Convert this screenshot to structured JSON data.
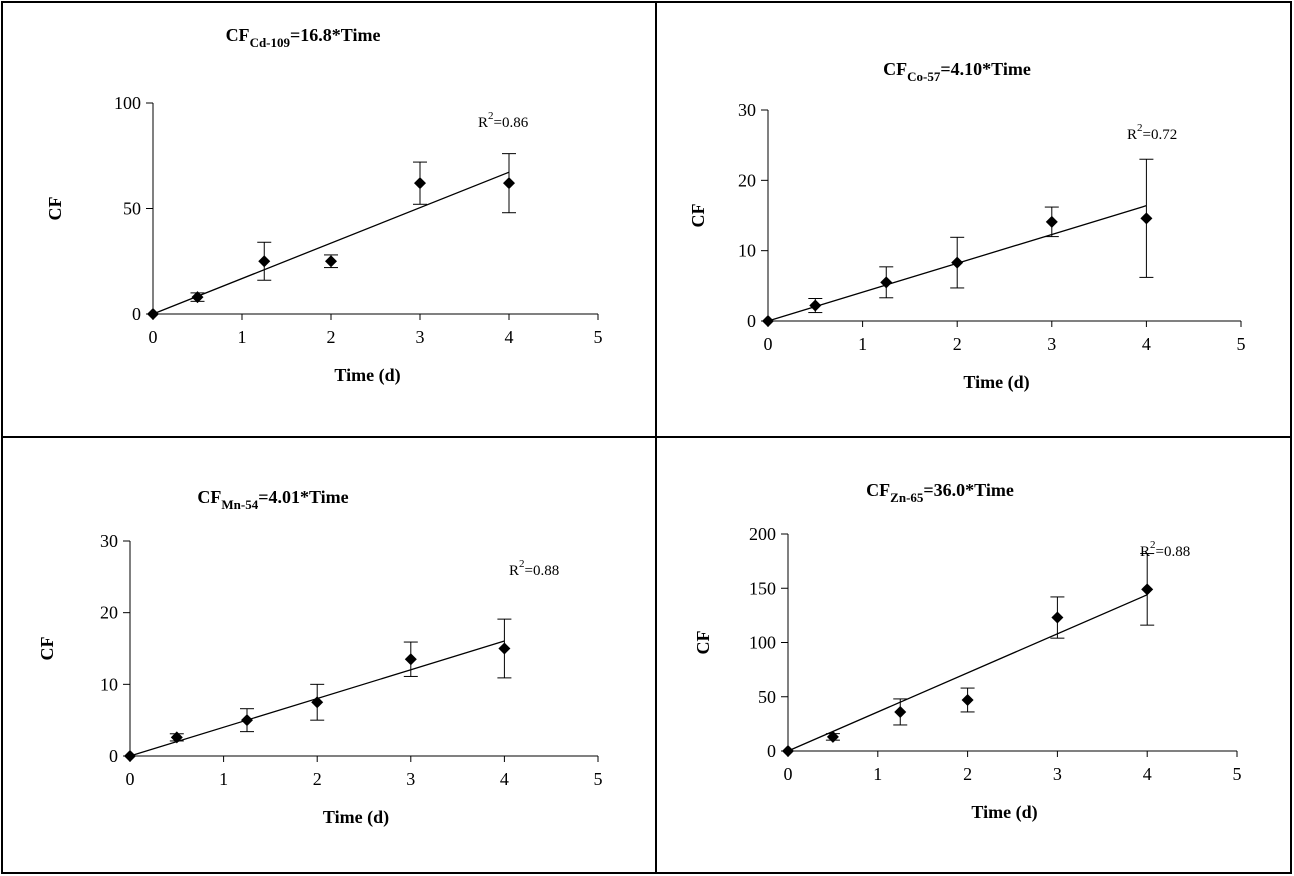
{
  "chart_data": [
    {
      "type": "scatter",
      "title": {
        "prefix": "CF",
        "sub": "Cd-109",
        "suffix": "=16.8*Time"
      },
      "xlabel": "Time (d)",
      "ylabel": "CF",
      "xlim": [
        0,
        5
      ],
      "ylim": [
        0,
        100
      ],
      "xticks": [
        0,
        1,
        2,
        3,
        4,
        5
      ],
      "yticks": [
        0,
        50,
        100
      ],
      "r2": {
        "label": "R",
        "sup": "2",
        "value": "=0.86"
      },
      "fit": {
        "slope": 16.8,
        "x": [
          0,
          4
        ]
      },
      "series": [
        {
          "x": [
            0,
            0.5,
            1.25,
            2,
            3,
            4
          ],
          "y": [
            0,
            8,
            25,
            25,
            62,
            62
          ],
          "err": [
            0,
            2,
            9,
            3,
            10,
            14
          ]
        }
      ]
    },
    {
      "type": "scatter",
      "title": {
        "prefix": "CF",
        "sub": "Co-57",
        "suffix": "=4.10*Time"
      },
      "xlabel": "Time (d)",
      "ylabel": "CF",
      "xlim": [
        0,
        5
      ],
      "ylim": [
        0,
        30
      ],
      "xticks": [
        0,
        1,
        2,
        3,
        4,
        5
      ],
      "yticks": [
        0,
        10,
        20,
        30
      ],
      "r2": {
        "label": "R",
        "sup": "2",
        "value": "=0.72"
      },
      "fit": {
        "slope": 4.1,
        "x": [
          0,
          4
        ]
      },
      "series": [
        {
          "x": [
            0,
            0.5,
            1.25,
            2,
            3,
            4
          ],
          "y": [
            0,
            2.2,
            5.5,
            8.3,
            14.1,
            14.6
          ],
          "err": [
            0,
            1.0,
            2.2,
            3.6,
            2.1,
            8.4
          ]
        }
      ]
    },
    {
      "type": "scatter",
      "title": {
        "prefix": "CF",
        "sub": "Mn-54",
        "suffix": "=4.01*Time"
      },
      "xlabel": "Time (d)",
      "ylabel": "CF",
      "xlim": [
        0,
        5
      ],
      "ylim": [
        0,
        30
      ],
      "xticks": [
        0,
        1,
        2,
        3,
        4,
        5
      ],
      "yticks": [
        0,
        10,
        20,
        30
      ],
      "r2": {
        "label": "R",
        "sup": "2",
        "value": "=0.88"
      },
      "fit": {
        "slope": 4.01,
        "x": [
          0,
          4
        ]
      },
      "series": [
        {
          "x": [
            0,
            0.5,
            1.25,
            2,
            3,
            4
          ],
          "y": [
            0,
            2.6,
            5.0,
            7.5,
            13.5,
            15.0
          ],
          "err": [
            0,
            0.5,
            1.6,
            2.5,
            2.4,
            4.1
          ]
        }
      ]
    },
    {
      "type": "scatter",
      "title": {
        "prefix": "CF",
        "sub": "Zn-65",
        "suffix": "=36.0*Time"
      },
      "xlabel": "Time (d)",
      "ylabel": "CF",
      "xlim": [
        0,
        5
      ],
      "ylim": [
        0,
        200
      ],
      "xticks": [
        0,
        1,
        2,
        3,
        4,
        5
      ],
      "yticks": [
        0,
        50,
        100,
        150,
        200
      ],
      "r2": {
        "label": "R",
        "sup": "2",
        "value": "=0.88"
      },
      "fit": {
        "slope": 36.0,
        "x": [
          0,
          4
        ]
      },
      "series": [
        {
          "x": [
            0,
            0.5,
            1.25,
            2,
            3,
            4
          ],
          "y": [
            0,
            13,
            36,
            47,
            123,
            149
          ],
          "err": [
            0,
            3,
            12,
            11,
            19,
            33
          ]
        }
      ]
    }
  ]
}
